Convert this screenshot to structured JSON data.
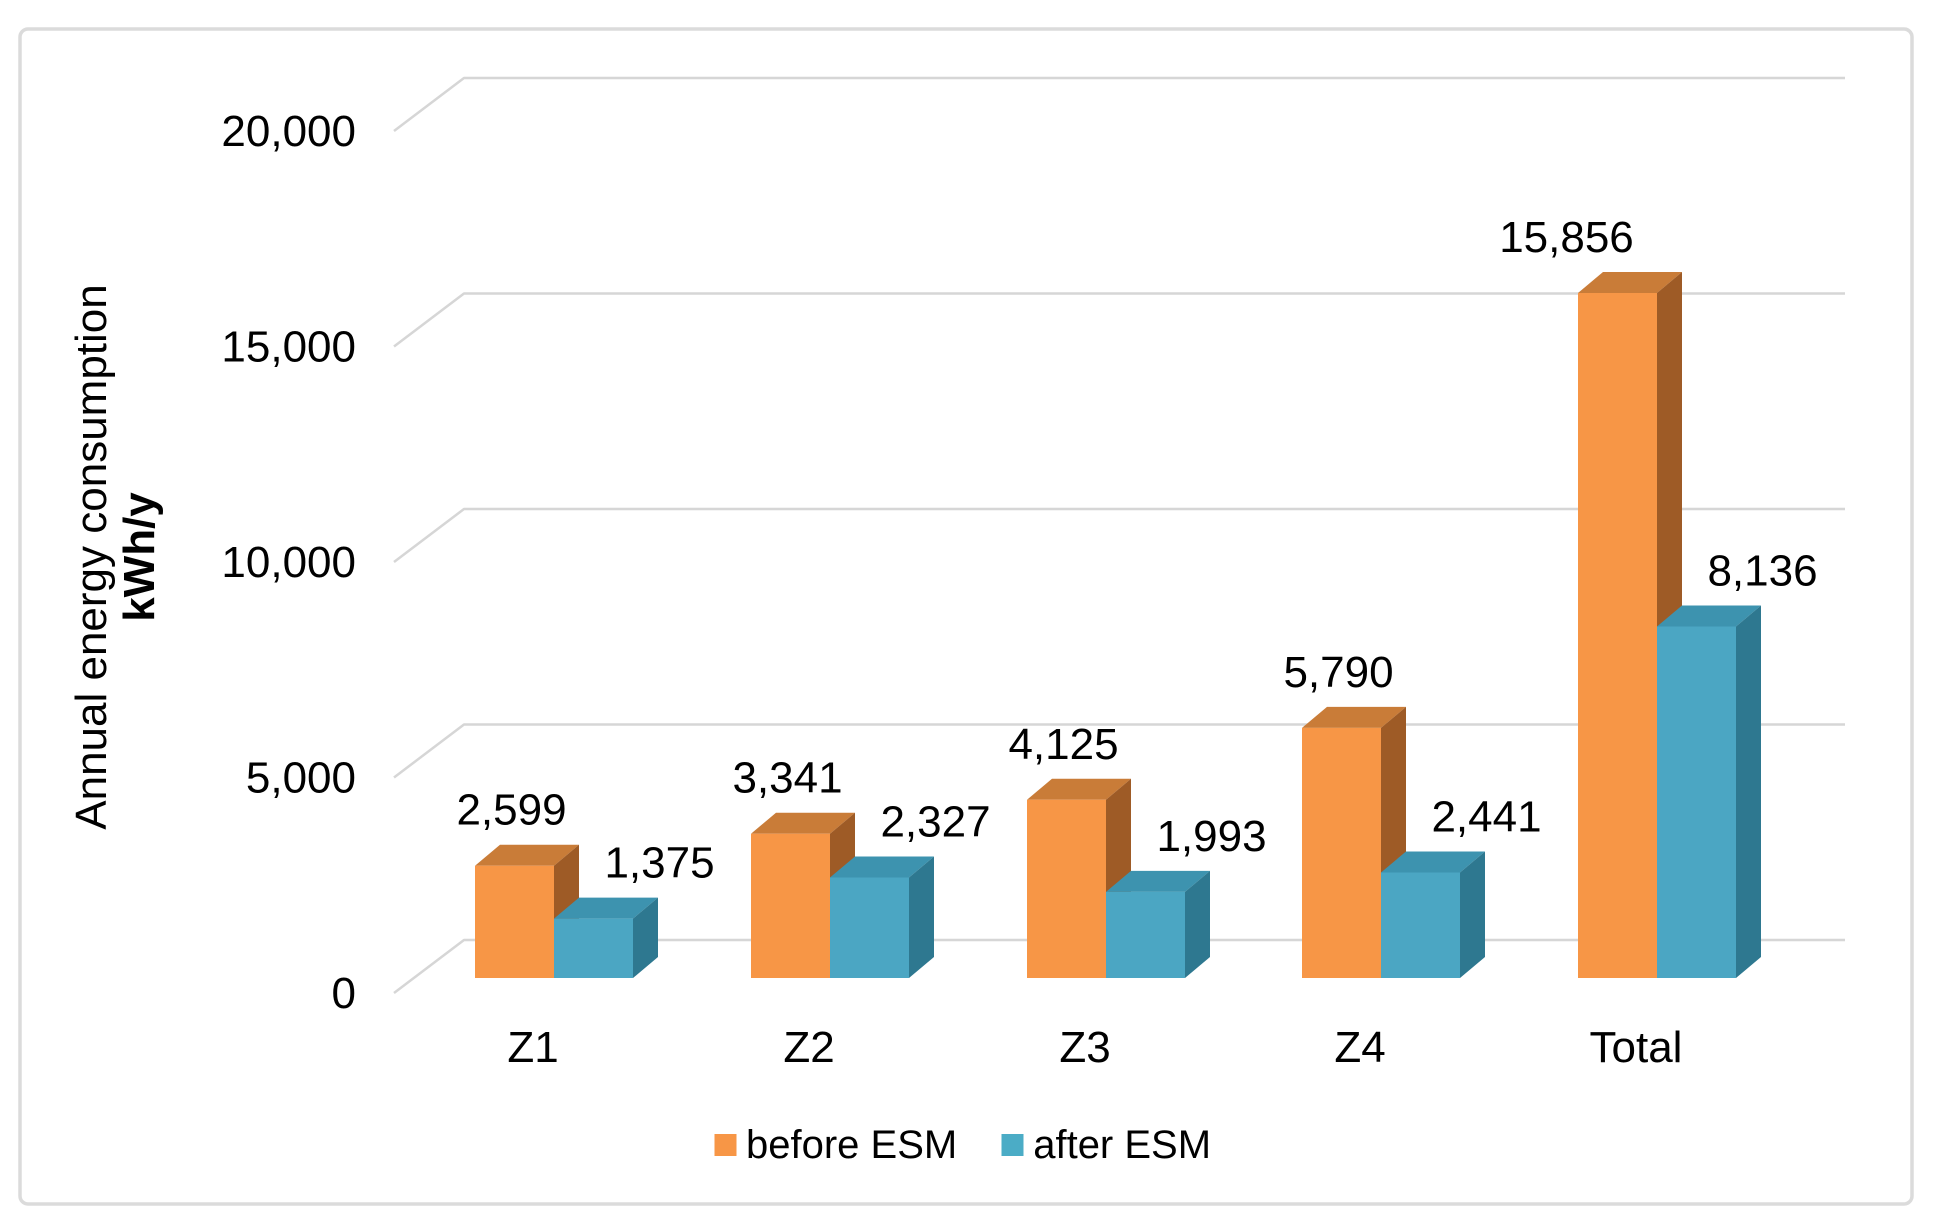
{
  "chart_data": {
    "type": "bar",
    "variant": "3d-clustered-column",
    "title": "",
    "categories": [
      "Z1",
      "Z2",
      "Z3",
      "Z4",
      "Total"
    ],
    "series": [
      {
        "name": "before ESM",
        "values": [
          2599,
          3341,
          4125,
          5790,
          15856
        ],
        "legend_color": "#F79646",
        "color_front": "#F79646",
        "color_top": "#C97C38",
        "color_side": "#9E5B26",
        "label_offset_x": -3,
        "label_dx": [
          0,
          0,
          0,
          0,
          -48
        ]
      },
      {
        "name": "after ESM",
        "values": [
          1375,
          2327,
          1993,
          2441,
          8136
        ],
        "legend_color": "#4BACC6",
        "color_front": "#4BA6C3",
        "color_top": "#3D93AF",
        "color_side": "#2E7890",
        "label_offset_x": 66,
        "label_dx": [
          0,
          0,
          0,
          0,
          0
        ]
      }
    ],
    "y_axis": {
      "title_line1": "Annual energy consumption",
      "title_line2": "kWh/y",
      "ticks": [
        0,
        5000,
        10000,
        15000,
        20000
      ],
      "tick_labels": [
        "0",
        "5,000",
        "10,000",
        "15,000",
        "20,000"
      ],
      "ylim": [
        0,
        20000
      ]
    },
    "x_axis": {
      "tick_labels": [
        "Z1",
        "Z2",
        "Z3",
        "Z4",
        "Total"
      ]
    },
    "data_labels": [
      "2,599",
      "1,375",
      "3,341",
      "2,327",
      "4,125",
      "1,993",
      "5,790",
      "2,441",
      "15,856",
      "8,136"
    ],
    "grid": true,
    "legend_position": "bottom",
    "colors": {
      "gridline": "#D6D6D6",
      "frame_border": "#DBDBDB",
      "text": "#000000",
      "background": "#FFFFFF"
    }
  }
}
